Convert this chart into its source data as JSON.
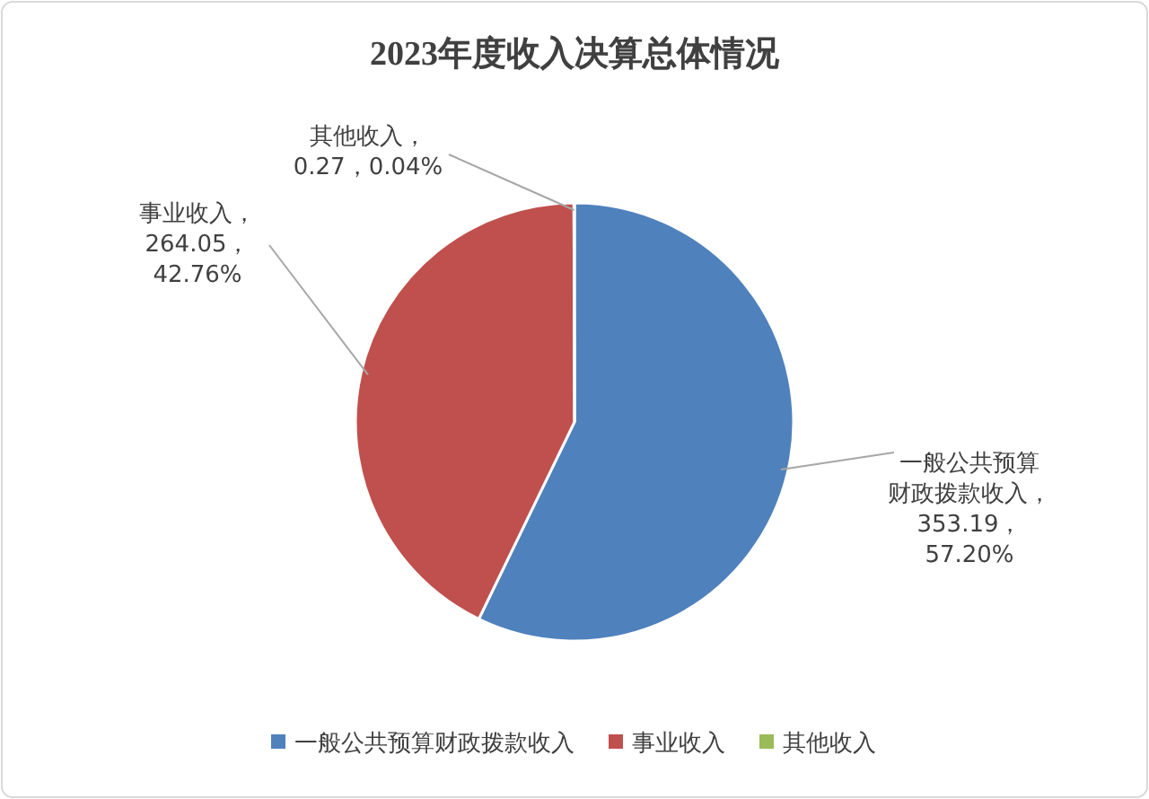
{
  "chart_data": {
    "type": "pie",
    "title": "2023年度收入决算总体情况",
    "categories": [
      "一般公共预算财政拨款收入",
      "事业收入",
      "其他收入"
    ],
    "values": [
      353.19,
      264.05,
      0.27
    ],
    "colors": [
      "#4f81bd",
      "#c0504d",
      "#9bbb59"
    ],
    "value_labels": [
      "一般公共预算财政拨款收入，353.19，57.20%",
      "事业收入，264.05，42.76%",
      "其他收入，0.27，0.04%"
    ],
    "legend": "bottom"
  }
}
